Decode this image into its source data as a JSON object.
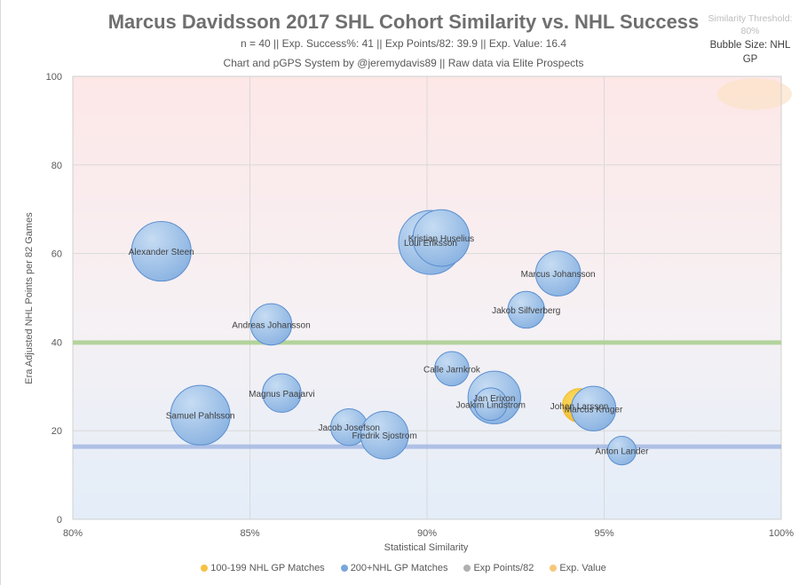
{
  "chart_data": {
    "type": "bubble",
    "title": "Marcus Davidsson 2017 SHL Cohort Similarity vs. NHL Success",
    "subtitle_1": "n = 40 || Exp. Success%: 41 || Exp Points/82: 39.9 || Exp. Value: 16.4",
    "subtitle_2": "Chart and pGPS System by @jeremydavis89  || Raw data via Elite Prospects",
    "similarity_threshold": "Similarity Threshold: 80%",
    "bubble_size_label": "Bubble Size: NHL GP",
    "xlabel": "Statistical Similarity",
    "ylabel": "Era Adjusted NHL Points per 82 Games",
    "xlim": [
      80,
      100
    ],
    "ylim": [
      0,
      100
    ],
    "x_ticks": [
      "80%",
      "85%",
      "90%",
      "95%",
      "100%"
    ],
    "y_ticks": [
      "0",
      "20",
      "40",
      "60",
      "80",
      "100"
    ],
    "grid": true,
    "legend_position": "bottom",
    "legend": [
      {
        "label": "100-199 NHL GP Matches",
        "color": "#f5c242"
      },
      {
        "label": "200+NHL GP Matches",
        "color": "#7aa7dc"
      },
      {
        "label": "Exp Points/82",
        "color": "#b0b0b0"
      },
      {
        "label": "Exp. Value",
        "color": "#f5c97a"
      }
    ],
    "reference_lines": [
      {
        "name": "Exp Points/82",
        "y": 39.9,
        "color": "#a9d08e"
      },
      {
        "name": "Exp. Value",
        "y": 16.4,
        "color": "#a4b9e3"
      }
    ],
    "series": [
      {
        "name": "200+NHL GP Matches",
        "color": "#7aa7dc",
        "points": [
          {
            "label": "Alexander Steen",
            "x": 82.5,
            "y": 60.5,
            "size": 1000
          },
          {
            "label": "Andreas Johansson",
            "x": 85.6,
            "y": 44.0,
            "size": 480
          },
          {
            "label": "Samuel Pahlsson",
            "x": 83.6,
            "y": 23.5,
            "size": 1000
          },
          {
            "label": "Magnus Paajarvi",
            "x": 85.9,
            "y": 28.5,
            "size": 420
          },
          {
            "label": "Jacob Josefson",
            "x": 87.8,
            "y": 20.8,
            "size": 380
          },
          {
            "label": "Fredrik Sjostrom",
            "x": 88.8,
            "y": 19.0,
            "size": 640
          },
          {
            "label": "Loui Eriksson",
            "x": 90.1,
            "y": 62.5,
            "size": 1150
          },
          {
            "label": "Kristian Huselius",
            "x": 90.4,
            "y": 63.5,
            "size": 900
          },
          {
            "label": "Calle Jarnkrok",
            "x": 90.7,
            "y": 34.0,
            "size": 330
          },
          {
            "label": "Jan Erixon",
            "x": 91.9,
            "y": 27.5,
            "size": 780
          },
          {
            "label": "Joakim Lindstrom",
            "x": 91.8,
            "y": 26.0,
            "size": 300
          },
          {
            "label": "Marcus Johansson",
            "x": 93.7,
            "y": 55.5,
            "size": 570
          },
          {
            "label": "Jakob Silfverberg",
            "x": 92.8,
            "y": 47.3,
            "size": 380
          },
          {
            "label": "Marcus Kruger",
            "x": 94.7,
            "y": 25.0,
            "size": 560
          },
          {
            "label": "Anton Lander",
            "x": 95.5,
            "y": 15.5,
            "size": 230
          }
        ]
      },
      {
        "name": "100-199 NHL GP Matches",
        "color": "#f5c242",
        "points": [
          {
            "label": "Johan Larsson",
            "x": 94.3,
            "y": 25.7,
            "size": 320
          }
        ]
      }
    ]
  }
}
